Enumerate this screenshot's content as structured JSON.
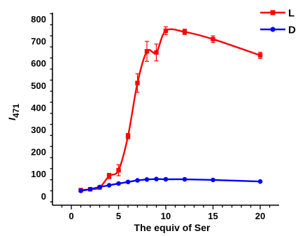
{
  "chart_data": {
    "type": "line",
    "title": "",
    "xlabel": "The equiv of Ser",
    "ylabel_main": "I",
    "ylabel_sub": "471",
    "xlim": [
      -2,
      22
    ],
    "ylim": [
      -40,
      830
    ],
    "x_ticks": [
      0,
      5,
      10,
      15,
      20
    ],
    "y_ticks": [
      0,
      100,
      200,
      300,
      400,
      500,
      600,
      700,
      800
    ],
    "grid": false,
    "legend_position": "top-right",
    "series": [
      {
        "name": "L",
        "color": "#ff0000",
        "marker": "square",
        "x": [
          1,
          2,
          3,
          4,
          5,
          6,
          7,
          8,
          9,
          10,
          12,
          15,
          20
        ],
        "y": [
          28,
          32,
          40,
          92,
          118,
          272,
          512,
          655,
          650,
          748,
          743,
          710,
          637
        ],
        "err": [
          6,
          5,
          5,
          12,
          25,
          12,
          42,
          45,
          38,
          18,
          12,
          15,
          14
        ]
      },
      {
        "name": "D",
        "color": "#0000ff",
        "marker": "circle",
        "x": [
          1,
          2,
          3,
          4,
          5,
          6,
          7,
          8,
          9,
          10,
          12,
          15,
          20
        ],
        "y": [
          25,
          32,
          42,
          50,
          58,
          65,
          72,
          76,
          78,
          77,
          77,
          74,
          67
        ],
        "err": [
          0,
          0,
          0,
          0,
          0,
          0,
          0,
          0,
          0,
          0,
          0,
          0,
          0
        ]
      }
    ]
  }
}
